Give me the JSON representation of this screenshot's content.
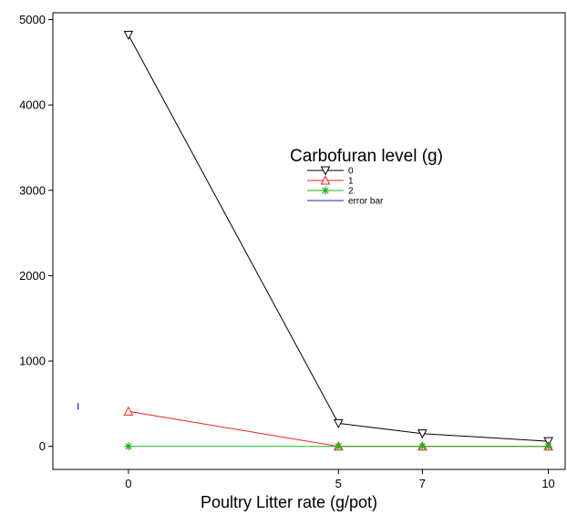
{
  "chart_data": {
    "type": "line",
    "xlabel": "Poultry Litter rate (g/pot)",
    "ylabel": "",
    "x_ticks": [
      0,
      5,
      7,
      10
    ],
    "y_ticks": [
      0,
      1000,
      2000,
      3000,
      4000,
      5000
    ],
    "xlim": [
      -1.8,
      10.4
    ],
    "ylim": [
      -270,
      5080
    ],
    "grid": false,
    "legend": {
      "title": "Carbofuran level (g)",
      "placement": "center-right",
      "entries": [
        "0",
        "1",
        "2",
        "error bar"
      ]
    },
    "x": [
      0,
      5,
      7,
      10
    ],
    "series": [
      {
        "name": "0",
        "marker": "triangle-down",
        "color": "#000000",
        "values": [
          4820,
          270,
          150,
          60
        ]
      },
      {
        "name": "1",
        "marker": "triangle-up",
        "color": "#e8241c",
        "values": [
          410,
          0,
          0,
          0
        ]
      },
      {
        "name": "2",
        "marker": "asterisk",
        "color": "#1db51d",
        "values": [
          0,
          0,
          0,
          0
        ]
      }
    ],
    "error_bar": {
      "name": "error bar",
      "color": "#1f1fd6",
      "x": -1.2,
      "y": 470,
      "half_range": 40
    }
  }
}
